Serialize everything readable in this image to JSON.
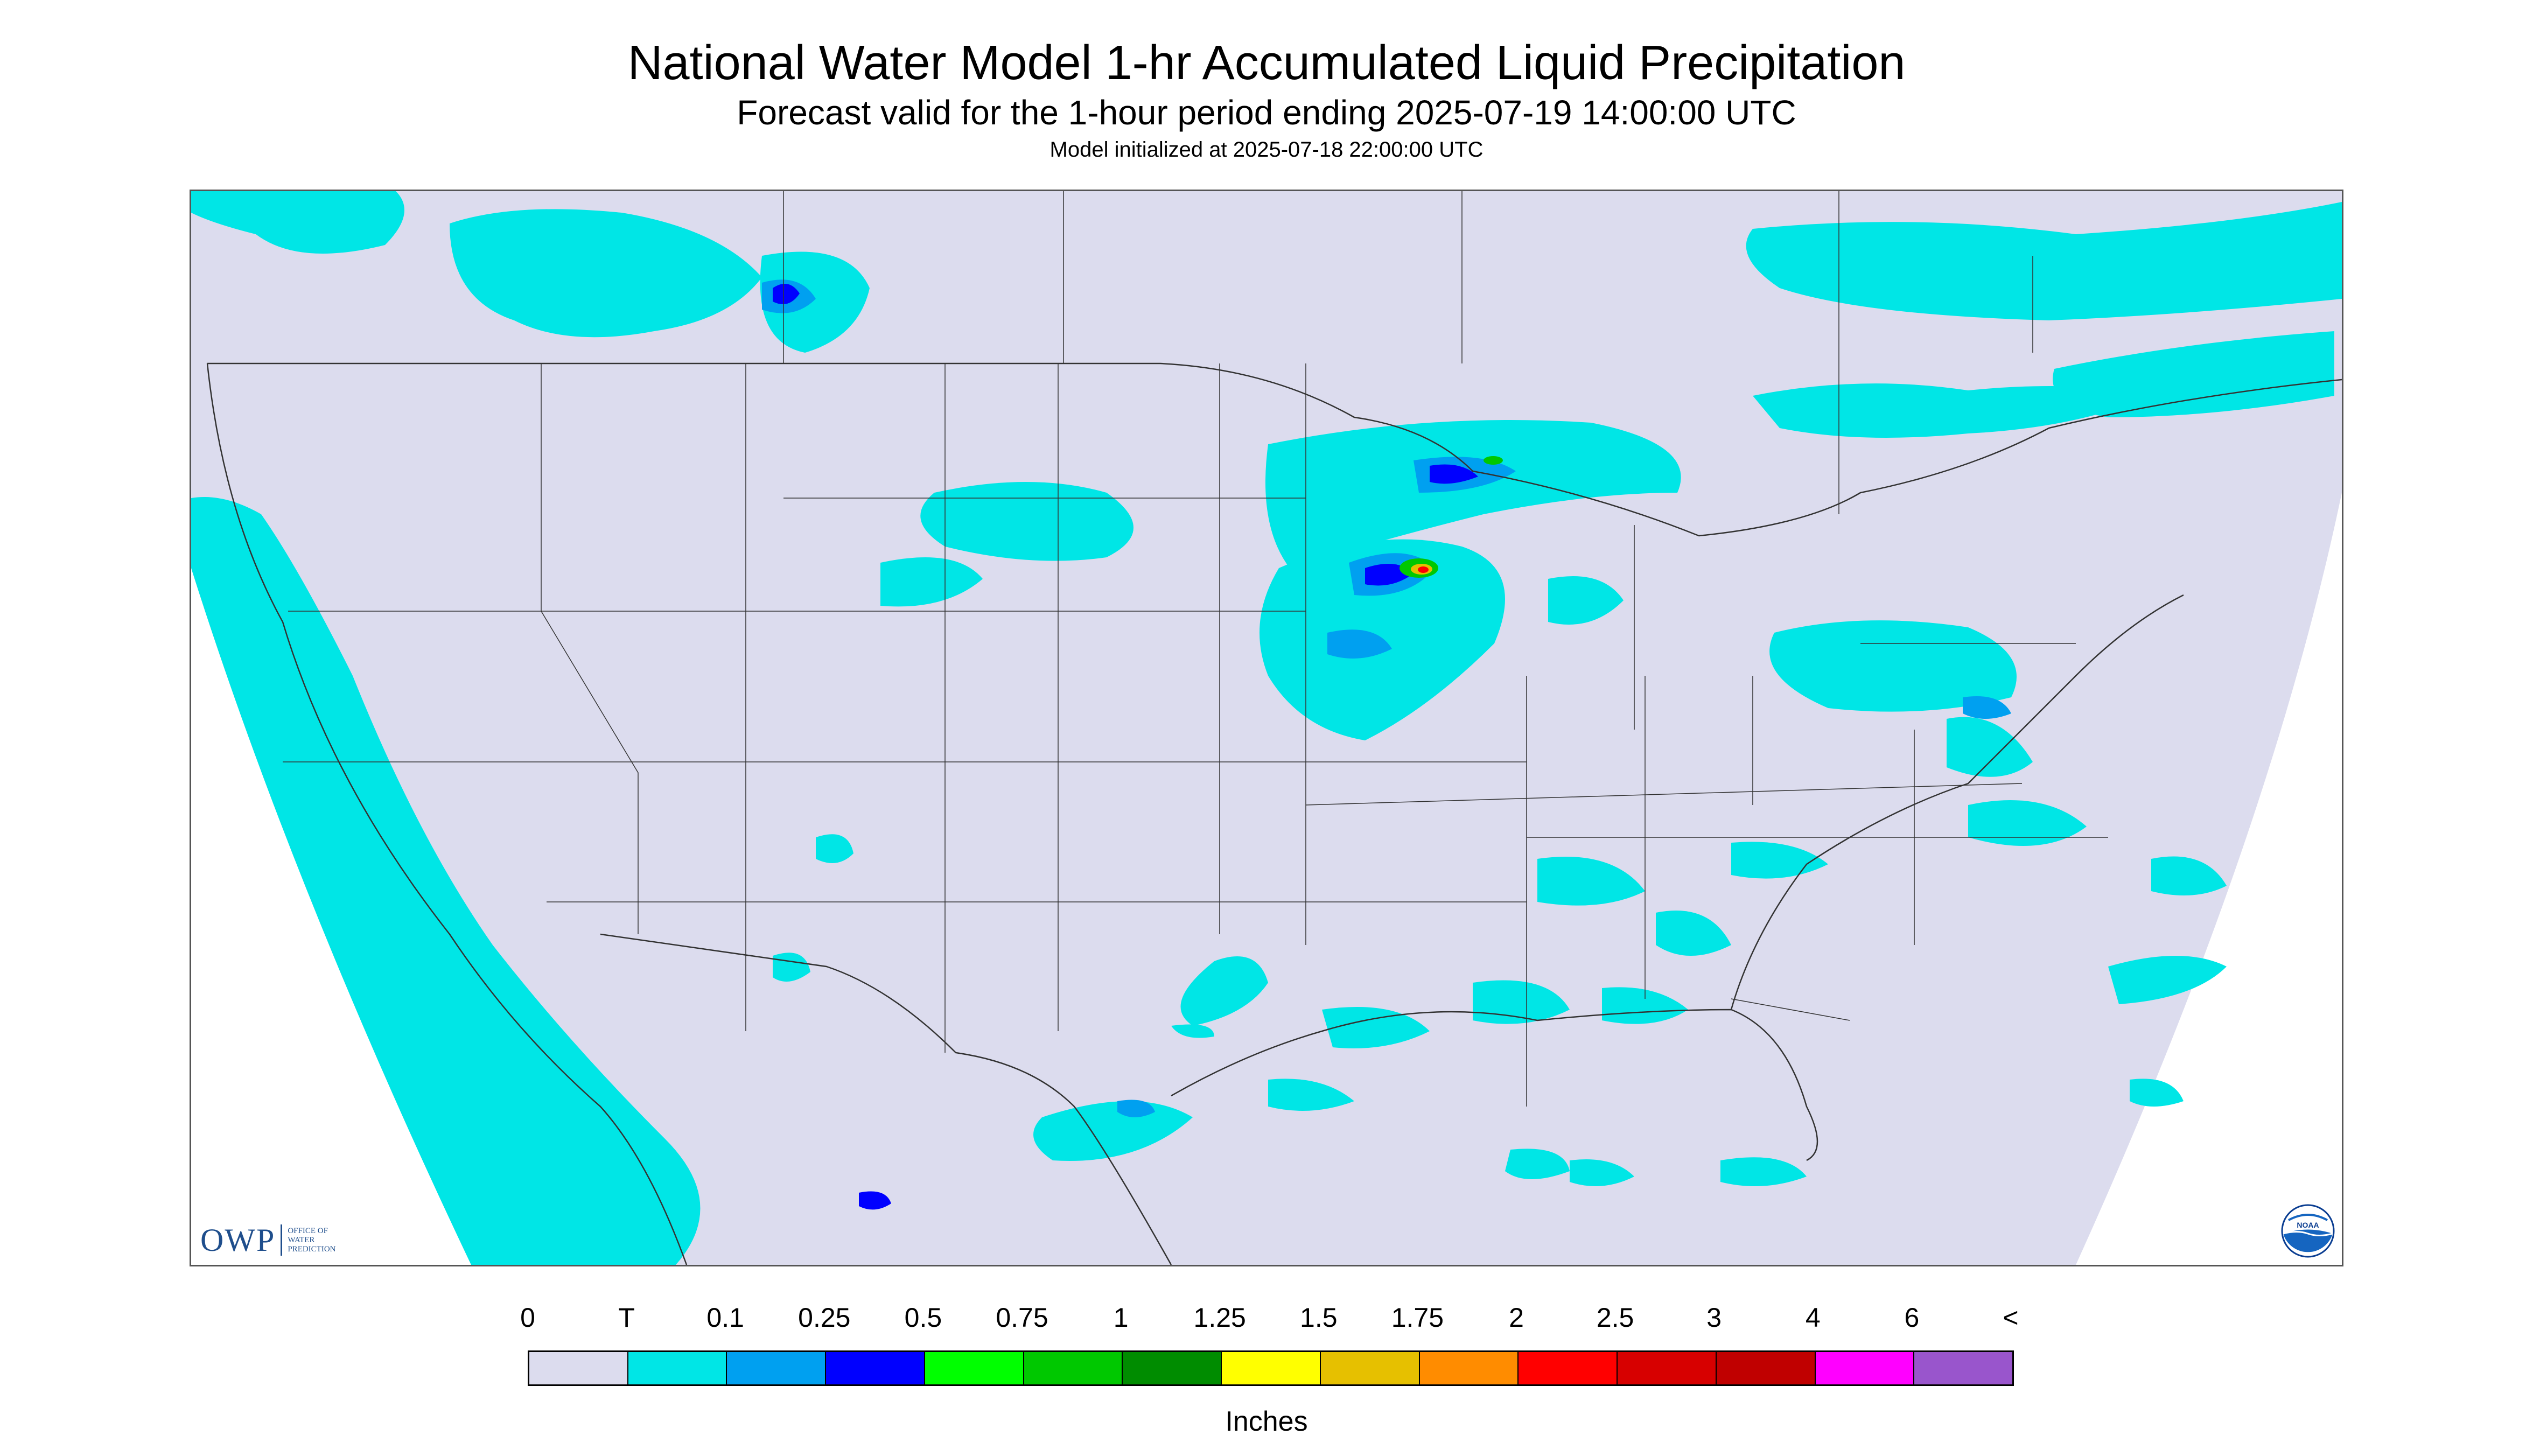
{
  "header": {
    "title": "National Water Model 1-hr Accumulated Liquid Precipitation",
    "subtitle": "Forecast valid for the 1-hour period ending 2025-07-19 14:00:00 UTC",
    "init_line": "Model initialized at 2025-07-18 22:00:00 UTC"
  },
  "logos": {
    "owp_main": "OWP",
    "owp_sub": [
      "OFFICE OF",
      "WATER",
      "PREDICTION"
    ],
    "noaa": "NOAA"
  },
  "map": {
    "background_color": "#dcdcee",
    "outside_color": "#ffffff",
    "boundary_color": "#333333"
  },
  "legend": {
    "labels": [
      "0",
      "T",
      "0.1",
      "0.25",
      "0.5",
      "0.75",
      "1",
      "1.25",
      "1.5",
      "1.75",
      "2",
      "2.5",
      "3",
      "4",
      "6",
      "<"
    ],
    "colors": [
      "#dcdcee",
      "#00e6e6",
      "#00a0f0",
      "#0000ff",
      "#00ff00",
      "#00c800",
      "#008c00",
      "#ffff00",
      "#e6c000",
      "#ff8c00",
      "#ff0000",
      "#d70000",
      "#c00000",
      "#ff00ff",
      "#9955cc"
    ],
    "units": "Inches"
  }
}
